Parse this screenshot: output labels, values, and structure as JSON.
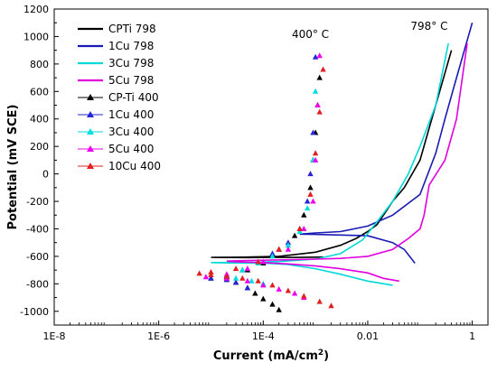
{
  "chart_data": {
    "type": "line",
    "xlabel": "Current (mA/cm",
    "xlabel_sup": "2",
    "xlabel_end": ")",
    "ylabel": "Potential (mV SCE)",
    "x_scale": "log",
    "xlim": [
      1e-08,
      2
    ],
    "ylim": [
      -1100,
      1200
    ],
    "x_ticks": [
      1e-08,
      1e-06,
      0.0001,
      0.01,
      1
    ],
    "x_tick_labels": [
      "1E-8",
      "1E-6",
      "1E-4",
      "0.01",
      "1"
    ],
    "y_ticks": [
      -1000,
      -800,
      -600,
      -400,
      -200,
      0,
      200,
      400,
      600,
      800,
      1000,
      1200
    ],
    "y_tick_labels": [
      "-1000",
      "-800",
      "-600",
      "-400",
      "-200",
      "0",
      "200",
      "400",
      "600",
      "800",
      "1000",
      "1200"
    ],
    "legend_position": "top-left",
    "annotations": [
      {
        "text": "400° C",
        "x": 0.0008,
        "y": 990
      },
      {
        "text": "798° C",
        "x": 0.15,
        "y": 1050
      }
    ],
    "series": [
      {
        "name": "CPTi 798",
        "color": "#000000",
        "style": "line",
        "x": [
          0.0014,
          0.001,
          0.0005,
          0.0001,
          5e-05,
          1.2e-05,
          1e-05,
          4e-05,
          0.0002,
          0.001,
          0.003,
          0.006,
          0.01,
          0.015,
          0.02,
          0.03,
          0.05,
          0.1,
          0.2,
          0.4
        ],
        "y": [
          -605,
          -606,
          -608,
          -608,
          -609,
          -608,
          -607,
          -606,
          -600,
          -570,
          -520,
          -470,
          -420,
          -370,
          -300,
          -200,
          -100,
          100,
          500,
          900
        ]
      },
      {
        "name": "1Cu 798",
        "color": "#1a1ab4",
        "style": "line",
        "x": [
          0.08,
          0.05,
          0.03,
          0.01,
          0.003,
          0.001,
          0.0005,
          0.001,
          0.003,
          0.01,
          0.03,
          0.1,
          0.2,
          0.3,
          0.5,
          1
        ],
        "y": [
          -650,
          -550,
          -500,
          -450,
          -445,
          -440,
          -438,
          -430,
          -420,
          -380,
          -300,
          -150,
          150,
          400,
          700,
          1100
        ]
      },
      {
        "name": "3Cu 798",
        "color": "#00d8d8",
        "style": "line",
        "x": [
          0.03,
          0.01,
          0.003,
          0.001,
          0.0003,
          0.0001,
          2e-05,
          1e-05,
          5e-05,
          0.0002,
          0.001,
          0.003,
          0.008,
          0.015,
          0.03,
          0.06,
          0.1,
          0.2,
          0.35
        ],
        "y": [
          -810,
          -780,
          -730,
          -690,
          -660,
          -650,
          -648,
          -645,
          -643,
          -638,
          -620,
          -580,
          -480,
          -350,
          -200,
          0,
          200,
          500,
          950
        ]
      },
      {
        "name": "5Cu 798",
        "color": "#e000e0",
        "style": "line",
        "x": [
          0.04,
          0.02,
          0.01,
          0.003,
          0.001,
          0.0003,
          0.0001,
          3e-05,
          2e-05,
          5e-05,
          0.0003,
          0.001,
          0.003,
          0.01,
          0.03,
          0.06,
          0.1,
          0.12,
          0.15,
          0.3,
          0.5,
          0.8
        ],
        "y": [
          -780,
          -760,
          -720,
          -690,
          -670,
          -655,
          -645,
          -640,
          -635,
          -630,
          -625,
          -620,
          -615,
          -600,
          -550,
          -470,
          -400,
          -300,
          -80,
          100,
          400,
          950
        ]
      },
      {
        "name": "CP-Ti 400",
        "color": "#000000",
        "style": "marker",
        "marker": "▲",
        "x": [
          0.0002,
          0.00015,
          0.0001,
          7e-05,
          5e-05,
          3e-05,
          2e-05,
          1e-05,
          2e-05,
          5e-05,
          0.0001,
          0.0002,
          0.0004,
          0.0006,
          0.0008,
          0.0009,
          0.001,
          0.0011,
          0.0012
        ],
        "y": [
          -990,
          -950,
          -910,
          -870,
          -830,
          -790,
          -770,
          -760,
          -750,
          -700,
          -650,
          -550,
          -450,
          -300,
          -100,
          100,
          300,
          500,
          700
        ]
      },
      {
        "name": "1Cu 400",
        "color": "#2626d8",
        "style": "marker",
        "marker": "▲",
        "x": [
          5e-05,
          3e-05,
          2e-05,
          1e-05,
          2e-05,
          4e-05,
          8e-05,
          0.00015,
          0.0003,
          0.0005,
          0.0007,
          0.0008,
          0.0009,
          0.001
        ],
        "y": [
          -830,
          -790,
          -770,
          -760,
          -740,
          -700,
          -650,
          -580,
          -500,
          -400,
          -200,
          0,
          300,
          850
        ]
      },
      {
        "name": "3Cu 400",
        "color": "#00dede",
        "style": "marker",
        "marker": "▲",
        "x": [
          0.0001,
          6e-05,
          3e-05,
          2e-05,
          4e-05,
          8e-05,
          0.00015,
          0.0003,
          0.0005,
          0.0007,
          0.0009,
          0.001
        ],
        "y": [
          -800,
          -780,
          -760,
          -745,
          -700,
          -650,
          -600,
          -520,
          -420,
          -250,
          100,
          600
        ]
      },
      {
        "name": "5Cu 400",
        "color": "#ee00ee",
        "style": "marker",
        "marker": "▲",
        "x": [
          0.0006,
          0.0004,
          0.0002,
          0.0001,
          5e-05,
          2e-05,
          8e-06,
          2e-05,
          5e-05,
          0.0001,
          0.0003,
          0.0006,
          0.0009,
          0.001,
          0.0011,
          0.0012
        ],
        "y": [
          -900,
          -870,
          -840,
          -810,
          -780,
          -760,
          -750,
          -730,
          -690,
          -640,
          -550,
          -400,
          -200,
          100,
          500,
          860
        ]
      },
      {
        "name": "10Cu 400",
        "color": "#e02020",
        "style": "marker",
        "marker": "▲",
        "x": [
          0.002,
          0.0012,
          0.0006,
          0.0003,
          0.00015,
          8e-05,
          4e-05,
          2e-05,
          1e-05,
          6e-06,
          1e-05,
          3e-05,
          8e-05,
          0.0002,
          0.0005,
          0.0008,
          0.001,
          0.0012,
          0.0014
        ],
        "y": [
          -960,
          -930,
          -890,
          -850,
          -810,
          -780,
          -760,
          -745,
          -735,
          -725,
          -715,
          -690,
          -640,
          -550,
          -400,
          -150,
          150,
          450,
          760
        ]
      }
    ]
  }
}
